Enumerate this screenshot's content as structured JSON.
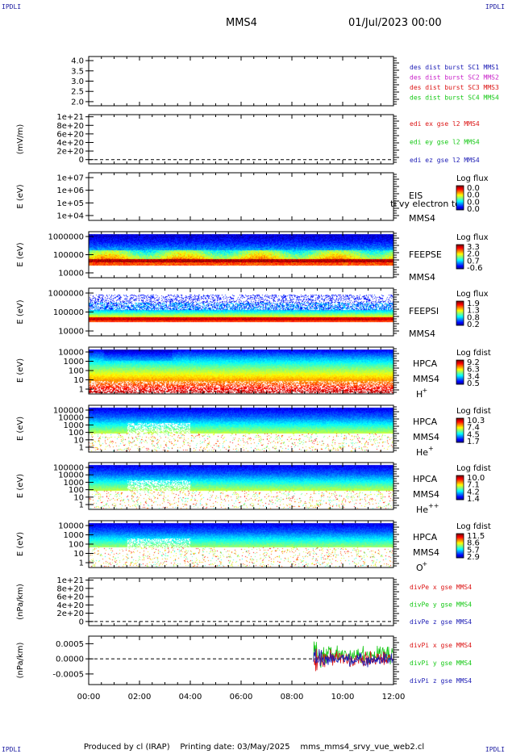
{
  "header": {
    "spacecraft": "MMS4",
    "datetime": "01/Jul/2023 00:00",
    "corner_left": "IPDLI",
    "corner_right": "IPDLI"
  },
  "footer": {
    "produced_by": "Produced by cl (IRAP)",
    "printing_date": "Printing date: 03/May/2025",
    "filename": "mms_mms4_srvy_vue_web2.cl"
  },
  "chart_data": [
    {
      "type": "line",
      "panel": "des-dist",
      "yticks": [
        "4.0",
        "3.5",
        "3.0",
        "2.5",
        "2.0"
      ],
      "ytick_values": [
        4.0,
        3.5,
        3.0,
        2.5,
        2.0
      ],
      "ylim": [
        1.8,
        4.2
      ],
      "series": [
        {
          "name": "des dist burst SC1 MMS1",
          "color": "#1a1ab4",
          "values": []
        },
        {
          "name": "des dist burst SC2 MMS2",
          "color": "#c81ec8",
          "values": []
        },
        {
          "name": "des dist burst SC3 MMS3",
          "color": "#dc1414",
          "values": []
        },
        {
          "name": "des dist burst SC4 MMS4",
          "color": "#14c814",
          "values": []
        }
      ]
    },
    {
      "type": "line",
      "panel": "edi-e",
      "ylabel": "(mV/m)",
      "yticks": [
        "1e+21",
        "8e+20",
        "6e+20",
        "4e+20",
        "2e+20",
        "0"
      ],
      "ytick_values": [
        1e+21,
        8e+20,
        6e+20,
        4e+20,
        2e+20,
        0
      ],
      "ylim": [
        -1e+20,
        1.05e+21
      ],
      "zero_line": true,
      "series": [
        {
          "name": "edi ex gse l2 MMS4",
          "color": "#dc1414",
          "values": []
        },
        {
          "name": "edi ey gse l2 MMS4",
          "color": "#14c814",
          "values": []
        },
        {
          "name": "edi ez gse l2 MMS4",
          "color": "#1a1ab4",
          "values": []
        }
      ]
    },
    {
      "type": "heatmap",
      "panel": "eis",
      "ylabel": "E (eV)",
      "yticks": [
        "1e+07",
        "1e+06",
        "1e+05",
        "1e+04"
      ],
      "labels": [
        "EIS",
        "MMS4"
      ],
      "overlay_text": "ti vy electron to",
      "colorbar_title": "Log flux",
      "colorbar_ticks": [
        "0.0",
        "0.0",
        "0.0",
        "0.0"
      ],
      "filled": false
    },
    {
      "type": "heatmap",
      "panel": "feeps-e",
      "ylabel": "E (eV)",
      "yticks": [
        "1000000",
        "100000",
        "10000"
      ],
      "labels": [
        "FEEPSE",
        "MMS4"
      ],
      "colorbar_title": "Log flux",
      "colorbar_ticks": [
        "3.3",
        "2.0",
        "0.7",
        "-0.6"
      ],
      "filled": true,
      "style": "feeps-e"
    },
    {
      "type": "heatmap",
      "panel": "feeps-i",
      "ylabel": "E (eV)",
      "yticks": [
        "1000000",
        "100000",
        "10000"
      ],
      "labels": [
        "FEEPSI",
        "MMS4"
      ],
      "colorbar_title": "Log flux",
      "colorbar_ticks": [
        "1.9",
        "1.3",
        "0.8",
        "0.2"
      ],
      "filled": true,
      "style": "feeps-i"
    },
    {
      "type": "heatmap",
      "panel": "hpca-h",
      "ylabel": "E (eV)",
      "yticks": [
        "10000",
        "1000",
        "100",
        "10",
        "1"
      ],
      "labels": [
        "HPCA",
        "MMS4"
      ],
      "species": "H",
      "species_charge": "+",
      "colorbar_title": "Log fdist",
      "colorbar_ticks": [
        "9.2",
        "6.3",
        "3.4",
        "0.5"
      ],
      "filled": true,
      "style": "hpca-h"
    },
    {
      "type": "heatmap",
      "panel": "hpca-he",
      "ylabel": "E (eV)",
      "yticks": [
        "100000",
        "10000",
        "1000",
        "100",
        "10",
        "1"
      ],
      "labels": [
        "HPCA",
        "MMS4"
      ],
      "species": "He",
      "species_charge": "+",
      "colorbar_title": "Log fdist",
      "colorbar_ticks": [
        "10.3",
        "7.4",
        "4.5",
        "1.7"
      ],
      "filled": true,
      "style": "hpca-he"
    },
    {
      "type": "heatmap",
      "panel": "hpca-he2",
      "ylabel": "E (eV)",
      "yticks": [
        "100000",
        "10000",
        "1000",
        "100",
        "10",
        "1"
      ],
      "labels": [
        "HPCA",
        "MMS4"
      ],
      "species": "He",
      "species_charge": "++",
      "colorbar_title": "Log fdist",
      "colorbar_ticks": [
        "10.0",
        "7.1",
        "4.2",
        "1.4"
      ],
      "filled": true,
      "style": "hpca-he2"
    },
    {
      "type": "heatmap",
      "panel": "hpca-o",
      "ylabel": "E (eV)",
      "yticks": [
        "10000",
        "1000",
        "100",
        "10",
        "1"
      ],
      "labels": [
        "HPCA",
        "MMS4"
      ],
      "species": "O",
      "species_charge": "+",
      "colorbar_title": "Log fdist",
      "colorbar_ticks": [
        "11.5",
        "8.6",
        "5.7",
        "2.9"
      ],
      "filled": true,
      "style": "hpca-o"
    },
    {
      "type": "line",
      "panel": "divpe",
      "ylabel": "(nPa/km)",
      "yticks": [
        "1e+21",
        "8e+20",
        "6e+20",
        "4e+20",
        "2e+20",
        "0"
      ],
      "ytick_values": [
        1e+21,
        8e+20,
        6e+20,
        4e+20,
        2e+20,
        0
      ],
      "ylim": [
        -1e+20,
        1.05e+21
      ],
      "zero_line": true,
      "series": [
        {
          "name": "divPe x gse MMS4",
          "color": "#dc1414",
          "values": []
        },
        {
          "name": "divPe y gse MMS4",
          "color": "#14c814",
          "values": []
        },
        {
          "name": "divPe z gse MMS4",
          "color": "#1a1ab4",
          "values": []
        }
      ]
    },
    {
      "type": "line",
      "panel": "divpi",
      "ylabel": "(nPa/km)",
      "yticks": [
        "0.0005",
        "0.0000",
        "-0.0005"
      ],
      "ytick_values": [
        0.0005,
        0.0,
        -0.0005
      ],
      "ylim": [
        -0.00085,
        0.00075
      ],
      "zero_line": true,
      "data_start_hour": 8.85,
      "series": [
        {
          "name": "divPi x gse MMS4",
          "color": "#dc1414"
        },
        {
          "name": "divPi y gse MMS4",
          "color": "#14c814"
        },
        {
          "name": "divPi z gse MMS4",
          "color": "#1a1ab4"
        }
      ]
    }
  ],
  "xaxis": {
    "ticks": [
      "00:00",
      "02:00",
      "04:00",
      "06:00",
      "08:00",
      "10:00",
      "12:00"
    ],
    "range_hours": [
      0,
      12
    ]
  }
}
